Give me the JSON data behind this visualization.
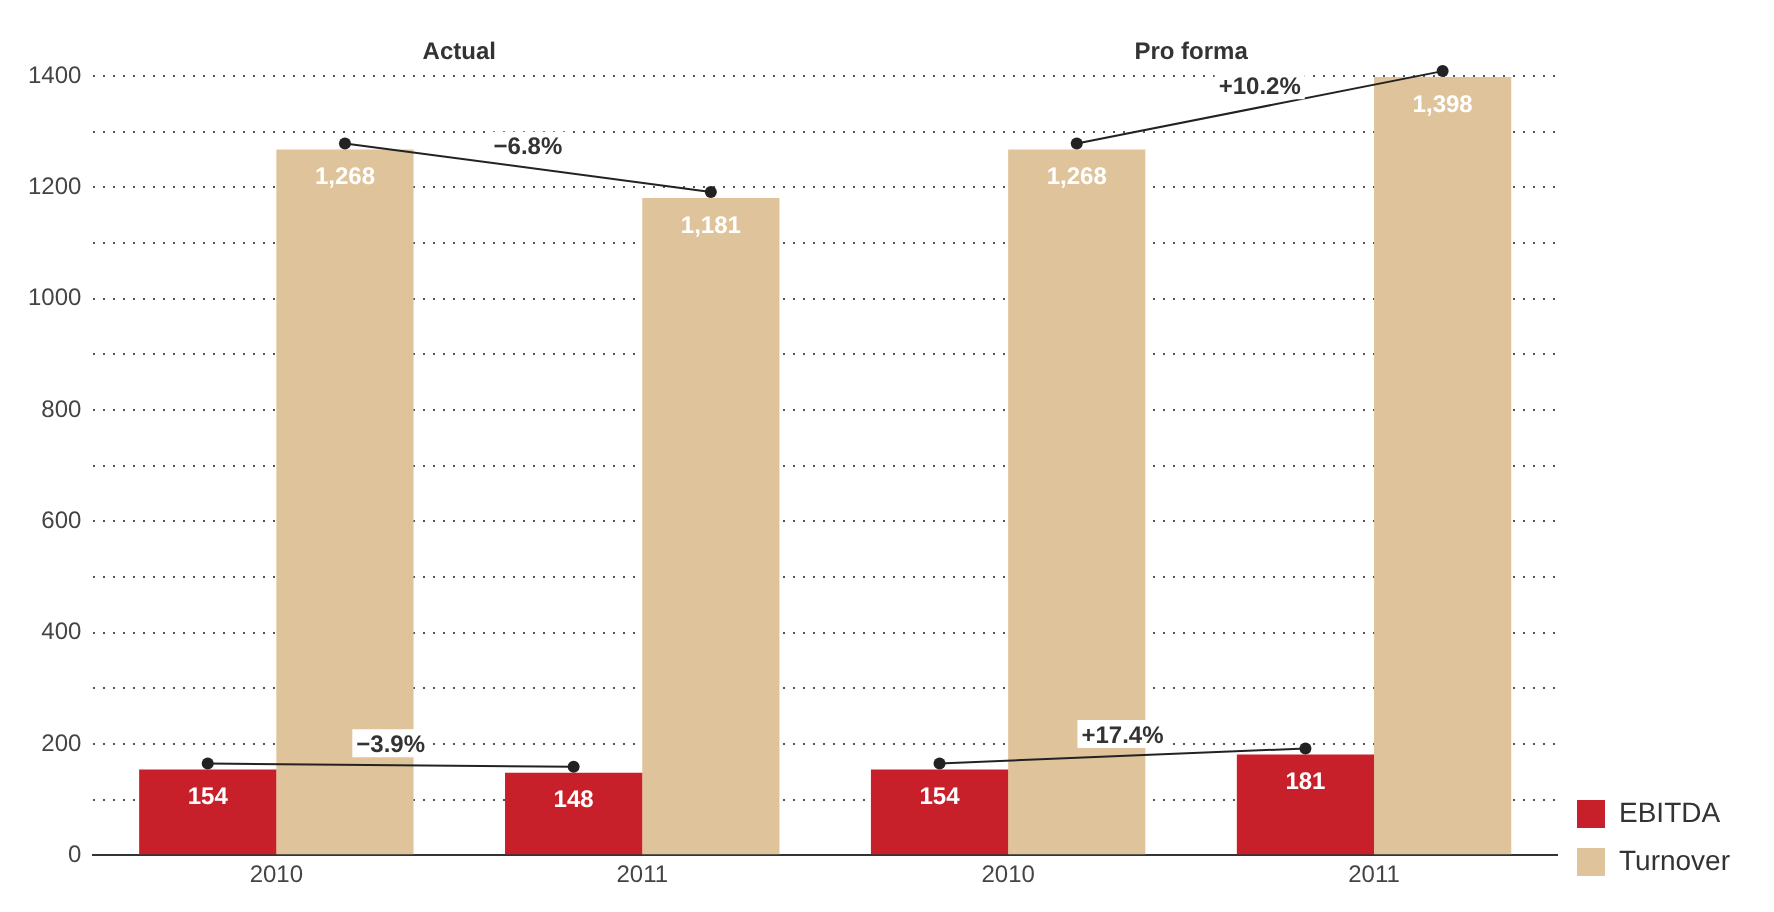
{
  "chart_data": {
    "type": "bar",
    "categories": [
      "2010",
      "2011",
      "2010",
      "2011"
    ],
    "series": [
      {
        "name": "EBITDA",
        "color": "#c8202a",
        "values": [
          154,
          148,
          154,
          181
        ],
        "value_labels": [
          "154",
          "148",
          "154",
          "181"
        ]
      },
      {
        "name": "Turnover",
        "color": "#dfc49b",
        "values": [
          1268,
          1181,
          1268,
          1398
        ],
        "value_labels": [
          "1,268",
          "1,181",
          "1,268",
          "1,398"
        ]
      }
    ],
    "ylim": [
      0,
      1400
    ],
    "yticks": [
      0,
      {
        "value": 100,
        "label": null
      },
      200,
      {
        "value": 300,
        "label": null
      },
      400,
      {
        "value": 500,
        "label": null
      },
      600,
      {
        "value": 700,
        "label": null
      },
      800,
      {
        "value": 900,
        "label": null
      },
      1000,
      {
        "value": 1100,
        "label": null
      },
      1200,
      {
        "value": 1300,
        "label": null
      },
      1400
    ],
    "grid": "y",
    "legend": "bottom right",
    "annotations": [
      "Actual",
      "Pro forma",
      "−3.9%",
      "−6.8%",
      "+17.4%",
      "+10.2%"
    ]
  }
}
